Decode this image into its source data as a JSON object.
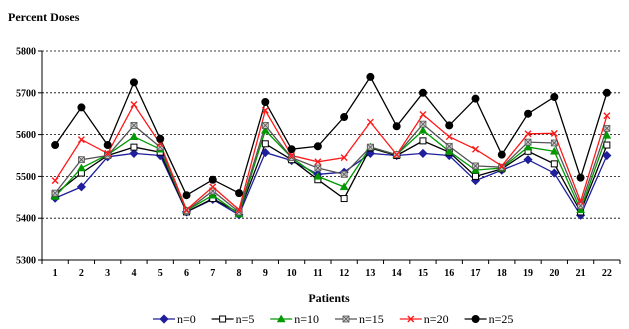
{
  "chart_data": {
    "type": "line",
    "title": "",
    "ylabel": "Percent Doses",
    "xlabel": "Patients",
    "ylim": [
      5300,
      5800
    ],
    "yticks": [
      5300,
      5400,
      5500,
      5600,
      5700,
      5800
    ],
    "grid": "horizontal dotted",
    "legend_position": "bottom",
    "categories": [
      "1",
      "2",
      "3",
      "4",
      "5",
      "6",
      "7",
      "8",
      "9",
      "10",
      "11",
      "12",
      "13",
      "14",
      "15",
      "16",
      "17",
      "18",
      "19",
      "20",
      "21",
      "22"
    ],
    "series": [
      {
        "name": "n=0",
        "color": "#1f1f9c",
        "marker": "diamond",
        "values": [
          5448,
          5475,
          5547,
          5555,
          5550,
          5415,
          5445,
          5408,
          5557,
          5538,
          5505,
          5510,
          5555,
          5550,
          5555,
          5550,
          5490,
          5515,
          5540,
          5508,
          5407,
          5550
        ]
      },
      {
        "name": "n=5",
        "color": "#000000",
        "marker": "square-open",
        "values": [
          5458,
          5508,
          5550,
          5570,
          5558,
          5415,
          5447,
          5413,
          5578,
          5540,
          5492,
          5447,
          5568,
          5550,
          5585,
          5558,
          5500,
          5518,
          5560,
          5530,
          5415,
          5575
        ]
      },
      {
        "name": "n=10",
        "color": "#009900",
        "marker": "triangle",
        "values": [
          5452,
          5520,
          5552,
          5595,
          5565,
          5418,
          5455,
          5410,
          5610,
          5545,
          5500,
          5475,
          5570,
          5552,
          5610,
          5560,
          5515,
          5520,
          5570,
          5560,
          5420,
          5598
        ]
      },
      {
        "name": "n=15",
        "color": "#555555",
        "marker": "square-x",
        "values": [
          5460,
          5540,
          5550,
          5622,
          5570,
          5418,
          5465,
          5415,
          5622,
          5545,
          5520,
          5505,
          5570,
          5552,
          5625,
          5572,
          5525,
          5522,
          5582,
          5580,
          5430,
          5615
        ]
      },
      {
        "name": "n=20",
        "color": "#ff1a1a",
        "marker": "x",
        "values": [
          5490,
          5588,
          5555,
          5672,
          5578,
          5420,
          5475,
          5420,
          5658,
          5550,
          5535,
          5545,
          5630,
          5552,
          5648,
          5595,
          5565,
          5525,
          5602,
          5603,
          5440,
          5645
        ]
      },
      {
        "name": "n=25",
        "color": "#000000",
        "marker": "circle",
        "values": [
          5575,
          5665,
          5575,
          5725,
          5590,
          5455,
          5492,
          5460,
          5678,
          5565,
          5572,
          5642,
          5738,
          5620,
          5700,
          5622,
          5686,
          5552,
          5650,
          5690,
          5497,
          5700
        ]
      }
    ]
  }
}
